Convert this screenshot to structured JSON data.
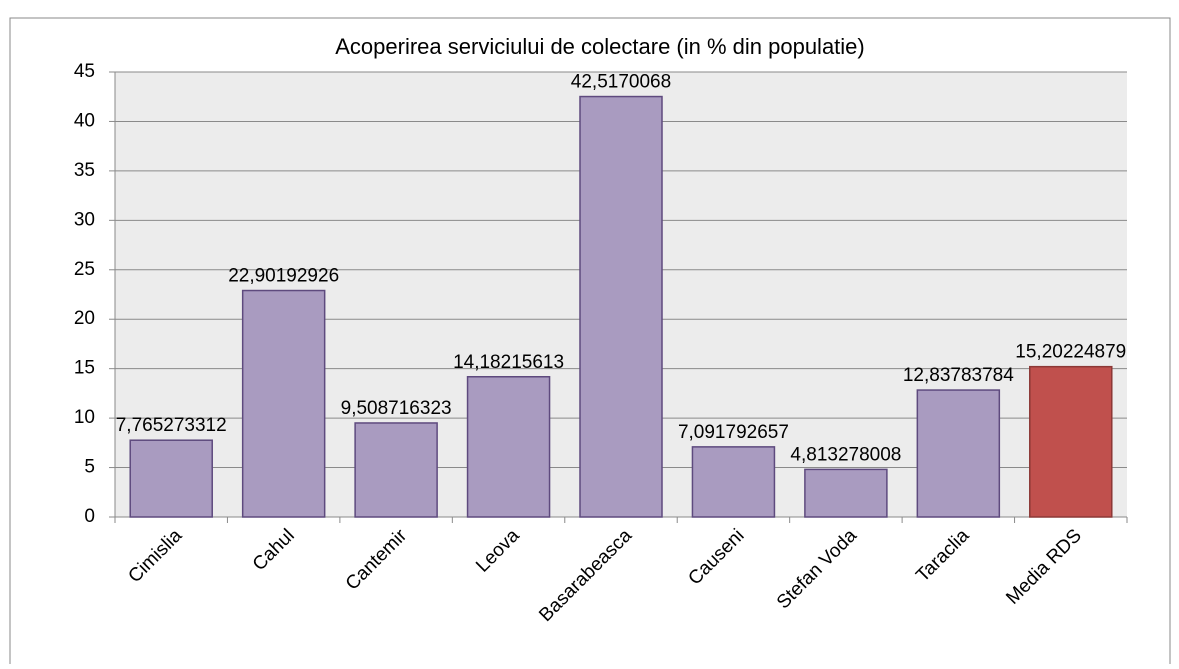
{
  "chart_data": {
    "type": "bar",
    "title": "Acoperirea serviciului de colectare (in % din populatie)",
    "categories": [
      "Cimislia",
      "Cahul",
      "Cantemir",
      "Leova",
      "Basarabeasca",
      "Causeni",
      "Stefan Voda",
      "Taraclia",
      "Media RDS"
    ],
    "values": [
      7.765273312,
      22.90192926,
      9.508716323,
      14.18215613,
      42.5170068,
      7.091792657,
      4.813278008,
      12.83783784,
      15.20224879
    ],
    "value_labels": [
      "7,765273312",
      "22,90192926",
      "9,508716323",
      "14,18215613",
      "42,5170068",
      "7,091792657",
      "4,813278008",
      "12,83783784",
      "15,20224879"
    ],
    "colors": [
      "#a99bc0",
      "#a99bc0",
      "#a99bc0",
      "#a99bc0",
      "#a99bc0",
      "#a99bc0",
      "#a99bc0",
      "#a99bc0",
      "#c0504d"
    ],
    "ylim": [
      0,
      45
    ],
    "yticks": [
      0,
      5,
      10,
      15,
      20,
      25,
      30,
      35,
      40,
      45
    ],
    "grid": true
  }
}
